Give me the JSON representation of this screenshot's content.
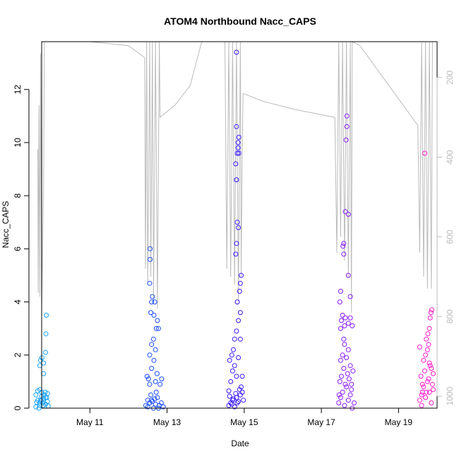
{
  "chart_data": {
    "type": "scatter",
    "title": "ATOM4 Northbound Nacc_CAPS",
    "xlabel": "Date",
    "ylabel": "Nacc_CAPS",
    "x_unit": "day of May",
    "xlim": [
      9.75,
      20.0
    ],
    "ylim": [
      0,
      13.8
    ],
    "x_ticks": [
      {
        "value": 11,
        "label": "May 11"
      },
      {
        "value": 13,
        "label": "May 13"
      },
      {
        "value": 15,
        "label": "May 15"
      },
      {
        "value": 17,
        "label": "May 17"
      },
      {
        "value": 19,
        "label": "May 19"
      }
    ],
    "y_ticks": [
      0,
      2,
      4,
      6,
      8,
      10,
      12
    ],
    "right_axis": {
      "ylim": [
        1030,
        110
      ],
      "ticks": [
        200,
        400,
        600,
        800,
        1000
      ],
      "color": "#bbbbbb"
    },
    "series": [
      {
        "color": "#1aa3ff",
        "points": [
          [
            9.6,
            0.5
          ],
          [
            9.65,
            0.3
          ],
          [
            9.7,
            0.2
          ],
          [
            9.75,
            0.6
          ],
          [
            9.8,
            0.1
          ],
          [
            9.85,
            0.4
          ],
          [
            9.9,
            0.25
          ],
          [
            9.6,
            0.05
          ],
          [
            9.7,
            0.7
          ],
          [
            9.75,
            0.45
          ],
          [
            9.8,
            0.35
          ],
          [
            9.85,
            0.15
          ],
          [
            9.9,
            0.55
          ],
          [
            9.65,
            0.65
          ],
          [
            9.7,
            0.1
          ],
          [
            9.78,
            0.2
          ],
          [
            9.82,
            0.5
          ],
          [
            9.88,
            0.4
          ],
          [
            9.72,
            0.3
          ],
          [
            9.68,
            0.0
          ],
          [
            9.92,
            0.08
          ],
          [
            9.62,
            0.22
          ],
          [
            9.74,
            0.28
          ],
          [
            9.84,
            0.6
          ],
          [
            9.7,
            1.6
          ],
          [
            9.72,
            1.8
          ],
          [
            9.8,
            1.7
          ],
          [
            9.85,
            2.1
          ],
          [
            9.86,
            2.8
          ],
          [
            9.87,
            3.5
          ],
          [
            9.8,
            1.3
          ],
          [
            9.76,
            1.9
          ]
        ]
      },
      {
        "color": "#1a4dff",
        "points": [
          [
            12.45,
            0.1
          ],
          [
            12.5,
            0.05
          ],
          [
            12.55,
            0.2
          ],
          [
            12.6,
            0.3
          ],
          [
            12.65,
            0.0
          ],
          [
            12.7,
            0.15
          ],
          [
            12.75,
            0.4
          ],
          [
            12.8,
            0.1
          ],
          [
            12.85,
            0.2
          ],
          [
            12.9,
            0.05
          ],
          [
            12.58,
            0.5
          ],
          [
            12.62,
            0.25
          ],
          [
            12.68,
            0.35
          ],
          [
            12.72,
            0.6
          ],
          [
            12.78,
            0.0
          ],
          [
            12.5,
            0.3
          ],
          [
            12.48,
            1.2
          ],
          [
            12.52,
            1.1
          ],
          [
            12.6,
            1.5
          ],
          [
            12.7,
            1.0
          ],
          [
            12.82,
            0.9
          ],
          [
            12.86,
            1.1
          ],
          [
            12.55,
            0.9
          ],
          [
            12.74,
            1.3
          ],
          [
            12.55,
            2.0
          ],
          [
            12.6,
            2.4
          ],
          [
            12.65,
            2.6
          ],
          [
            12.7,
            2.2
          ],
          [
            12.78,
            3.0
          ],
          [
            12.75,
            3.3
          ],
          [
            12.58,
            3.6
          ],
          [
            12.66,
            3.5
          ],
          [
            12.6,
            4.0
          ],
          [
            12.62,
            4.2
          ],
          [
            12.68,
            4.0
          ],
          [
            12.55,
            4.7
          ],
          [
            12.56,
            5.6
          ],
          [
            12.56,
            6.0
          ],
          [
            12.72,
            3.0
          ],
          [
            12.66,
            1.8
          ]
        ]
      },
      {
        "color": "#3a1aff",
        "points": [
          [
            14.6,
            0.1
          ],
          [
            14.65,
            0.2
          ],
          [
            14.7,
            0.3
          ],
          [
            14.75,
            0.05
          ],
          [
            14.8,
            0.4
          ],
          [
            14.85,
            0.25
          ],
          [
            14.9,
            0.5
          ],
          [
            14.95,
            0.6
          ],
          [
            14.62,
            0.45
          ],
          [
            14.68,
            0.15
          ],
          [
            14.72,
            0.35
          ],
          [
            14.78,
            0.55
          ],
          [
            14.82,
            0.2
          ],
          [
            14.88,
            0.7
          ],
          [
            14.92,
            0.8
          ],
          [
            14.98,
            0.3
          ],
          [
            14.65,
            1.0
          ],
          [
            14.7,
            1.4
          ],
          [
            14.75,
            1.6
          ],
          [
            14.8,
            1.2
          ],
          [
            14.85,
            1.9
          ],
          [
            14.68,
            2.0
          ],
          [
            14.72,
            2.2
          ],
          [
            14.62,
            1.8
          ],
          [
            14.75,
            2.6
          ],
          [
            14.8,
            2.9
          ],
          [
            14.85,
            3.3
          ],
          [
            14.9,
            3.6
          ],
          [
            14.82,
            4.0
          ],
          [
            14.88,
            4.4
          ],
          [
            14.9,
            4.7
          ],
          [
            14.92,
            5.0
          ],
          [
            14.78,
            5.8
          ],
          [
            14.8,
            6.2
          ],
          [
            14.85,
            6.8
          ],
          [
            14.82,
            7.0
          ],
          [
            14.8,
            8.6
          ],
          [
            14.78,
            9.2
          ],
          [
            14.82,
            9.6
          ],
          [
            14.86,
            9.6
          ],
          [
            14.84,
            10.0
          ],
          [
            14.86,
            10.2
          ],
          [
            14.8,
            10.6
          ],
          [
            14.84,
            9.8
          ],
          [
            14.8,
            13.4
          ],
          [
            14.9,
            2.6
          ],
          [
            14.95,
            1.2
          ],
          [
            14.6,
            0.65
          ]
        ]
      },
      {
        "color": "#8a1aff",
        "points": [
          [
            17.45,
            0.2
          ],
          [
            17.5,
            0.4
          ],
          [
            17.55,
            0.6
          ],
          [
            17.6,
            0.1
          ],
          [
            17.65,
            0.8
          ],
          [
            17.7,
            0.3
          ],
          [
            17.75,
            0.5
          ],
          [
            17.8,
            0.0
          ],
          [
            17.85,
            0.2
          ],
          [
            17.48,
            1.0
          ],
          [
            17.52,
            1.2
          ],
          [
            17.58,
            1.5
          ],
          [
            17.62,
            0.9
          ],
          [
            17.68,
            1.3
          ],
          [
            17.72,
            1.1
          ],
          [
            17.78,
            0.7
          ],
          [
            17.5,
            1.8
          ],
          [
            17.55,
            2.0
          ],
          [
            17.6,
            2.4
          ],
          [
            17.65,
            1.9
          ],
          [
            17.7,
            2.2
          ],
          [
            17.75,
            1.6
          ],
          [
            17.82,
            1.4
          ],
          [
            17.58,
            2.6
          ],
          [
            17.5,
            3.0
          ],
          [
            17.52,
            3.3
          ],
          [
            17.55,
            3.5
          ],
          [
            17.6,
            3.1
          ],
          [
            17.62,
            3.4
          ],
          [
            17.7,
            3.2
          ],
          [
            17.75,
            3.4
          ],
          [
            17.8,
            3.1
          ],
          [
            17.48,
            4.0
          ],
          [
            17.5,
            4.4
          ],
          [
            17.75,
            4.2
          ],
          [
            17.7,
            5.0
          ],
          [
            17.58,
            5.8
          ],
          [
            17.56,
            6.1
          ],
          [
            17.58,
            6.2
          ],
          [
            17.62,
            7.4
          ],
          [
            17.7,
            7.3
          ],
          [
            17.64,
            10.1
          ],
          [
            17.66,
            10.6
          ],
          [
            17.66,
            11.0
          ],
          [
            17.78,
            0.9
          ],
          [
            17.46,
            0.5
          ]
        ]
      },
      {
        "color": "#ff1acc",
        "points": [
          [
            19.55,
            0.3
          ],
          [
            19.6,
            0.5
          ],
          [
            19.65,
            0.8
          ],
          [
            19.7,
            0.4
          ],
          [
            19.75,
            1.0
          ],
          [
            19.8,
            0.6
          ],
          [
            19.85,
            0.2
          ],
          [
            19.9,
            0.7
          ],
          [
            19.58,
            1.2
          ],
          [
            19.62,
            0.9
          ],
          [
            19.68,
            1.4
          ],
          [
            19.72,
            0.6
          ],
          [
            19.78,
            1.1
          ],
          [
            19.82,
            1.6
          ],
          [
            19.88,
            0.9
          ],
          [
            19.6,
            0.1
          ],
          [
            19.65,
            1.8
          ],
          [
            19.7,
            2.0
          ],
          [
            19.75,
            2.2
          ],
          [
            19.8,
            1.7
          ],
          [
            19.85,
            1.5
          ],
          [
            19.72,
            2.6
          ],
          [
            19.78,
            2.4
          ],
          [
            19.55,
            2.3
          ],
          [
            19.8,
            3.0
          ],
          [
            19.82,
            3.4
          ],
          [
            19.84,
            3.6
          ],
          [
            19.86,
            3.7
          ],
          [
            19.76,
            2.8
          ],
          [
            19.68,
            9.6
          ],
          [
            19.9,
            1.3
          ],
          [
            19.62,
            0.6
          ]
        ]
      }
    ],
    "depth_trace": {
      "color": "#bbbbbb",
      "points": [
        [
          9.65,
          380
        ],
        [
          9.66,
          740
        ],
        [
          9.68,
          270
        ],
        [
          9.7,
          750
        ],
        [
          9.72,
          140
        ],
        [
          9.75,
          780
        ],
        [
          9.78,
          600
        ],
        [
          9.8,
          470
        ],
        [
          9.82,
          80
        ],
        [
          10.4,
          70
        ],
        [
          11.0,
          80
        ],
        [
          12.0,
          120
        ],
        [
          12.42,
          150
        ],
        [
          12.44,
          680
        ],
        [
          12.47,
          80
        ],
        [
          12.5,
          720
        ],
        [
          12.55,
          80
        ],
        [
          12.58,
          700
        ],
        [
          12.62,
          80
        ],
        [
          12.65,
          760
        ],
        [
          12.7,
          80
        ],
        [
          12.75,
          780
        ],
        [
          12.8,
          80
        ],
        [
          12.82,
          300
        ],
        [
          13.2,
          270
        ],
        [
          13.6,
          220
        ],
        [
          13.9,
          100
        ],
        [
          14.0,
          80
        ],
        [
          14.5,
          80
        ],
        [
          14.55,
          680
        ],
        [
          14.6,
          80
        ],
        [
          14.65,
          700
        ],
        [
          14.7,
          80
        ],
        [
          14.75,
          720
        ],
        [
          14.8,
          80
        ],
        [
          14.85,
          760
        ],
        [
          14.9,
          80
        ],
        [
          14.92,
          700
        ],
        [
          14.95,
          380
        ],
        [
          14.97,
          240
        ],
        [
          15.5,
          260
        ],
        [
          16.3,
          280
        ],
        [
          17.35,
          300
        ],
        [
          17.4,
          640
        ],
        [
          17.45,
          80
        ],
        [
          17.5,
          600
        ],
        [
          17.55,
          80
        ],
        [
          17.6,
          660
        ],
        [
          17.65,
          80
        ],
        [
          17.7,
          700
        ],
        [
          17.75,
          80
        ],
        [
          17.78,
          790
        ],
        [
          17.8,
          80
        ],
        [
          18.0,
          120
        ],
        [
          18.6,
          200
        ],
        [
          19.5,
          320
        ],
        [
          19.55,
          640
        ],
        [
          19.6,
          80
        ],
        [
          19.65,
          700
        ],
        [
          19.7,
          80
        ],
        [
          19.75,
          730
        ],
        [
          19.8,
          80
        ],
        [
          19.85,
          730
        ],
        [
          19.88,
          80
        ]
      ]
    },
    "grid": false,
    "legend": "none"
  }
}
